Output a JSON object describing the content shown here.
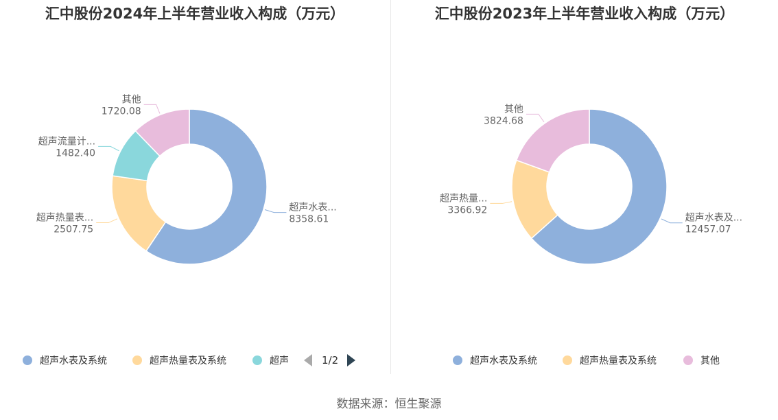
{
  "chart_data": [
    {
      "type": "pie",
      "title": "汇中股份2024年上半年营业收入构成（万元）",
      "series": [
        {
          "name": "超声水表及系统",
          "value": 8358.61,
          "color": "#8eb0dc",
          "label": "超声水表..."
        },
        {
          "name": "超声热量表及系统",
          "value": 2507.75,
          "color": "#ffd99c",
          "label": "超声热量表..."
        },
        {
          "name": "超声流量计及系统",
          "value": 1482.4,
          "color": "#8ad7dc",
          "label": "超声流量计..."
        },
        {
          "name": "其他",
          "value": 1720.08,
          "color": "#e8bcdc",
          "label": "其他"
        }
      ],
      "legend": {
        "placement": "bottom",
        "visible_items": [
          "超声水表及系统",
          "超声热量表及系统",
          "超声"
        ],
        "pager": "1/2"
      }
    },
    {
      "type": "pie",
      "title": "汇中股份2023年上半年营业收入构成（万元）",
      "series": [
        {
          "name": "超声水表及系统",
          "value": 12457.07,
          "color": "#8eb0dc",
          "label": "超声水表及..."
        },
        {
          "name": "超声热量表及系统",
          "value": 3366.92,
          "color": "#ffd99c",
          "label": "超声热量..."
        },
        {
          "name": "其他",
          "value": 3824.68,
          "color": "#e8bcdc",
          "label": "其他"
        }
      ],
      "legend": {
        "placement": "bottom",
        "visible_items": [
          "超声水表及系统",
          "超声热量表及系统",
          "其他"
        ]
      }
    }
  ],
  "source": "数据来源：恒生聚源"
}
